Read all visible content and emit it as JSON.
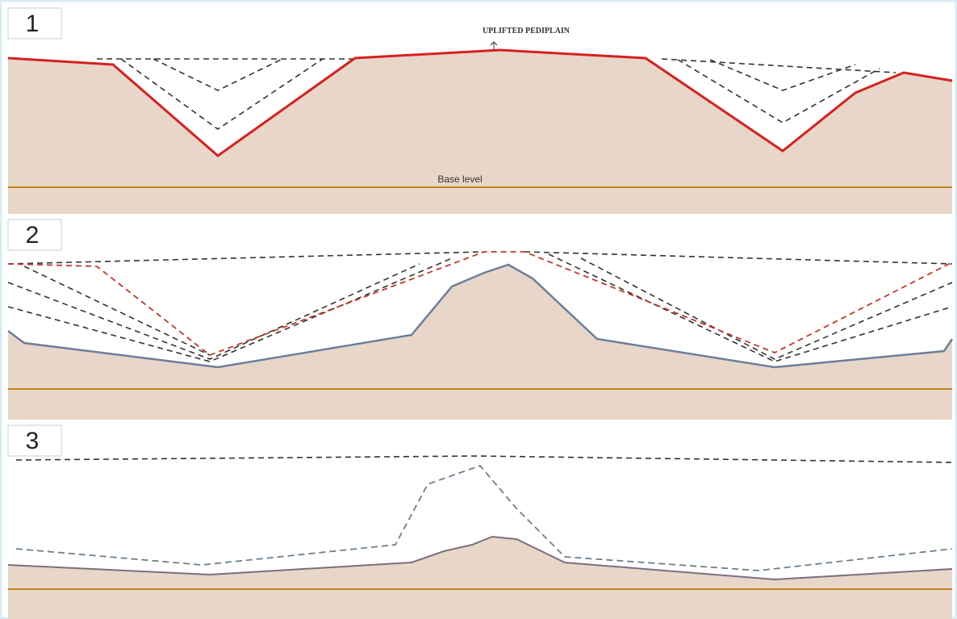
{
  "panels": [
    {
      "label": "1",
      "annotation": "UPLIFTED PEDIPLAIN",
      "base_label": "Base level"
    },
    {
      "label": "2"
    },
    {
      "label": "3"
    }
  ]
}
